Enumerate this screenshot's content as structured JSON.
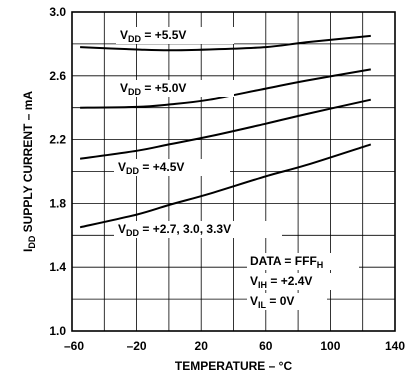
{
  "chart_data": {
    "type": "line",
    "xlabel": "TEMPERATURE – °C",
    "ylabel": {
      "main": "I",
      "sub": "DD",
      "rest": " SUPPLY CURRENT – mA"
    },
    "xlim": [
      -60,
      140
    ],
    "ylim": [
      1.0,
      3.0
    ],
    "x_ticks": [
      "–60",
      "–20",
      "20",
      "60",
      "100",
      "140"
    ],
    "y_ticks": [
      "1.0",
      "1.4",
      "1.8",
      "2.2",
      "2.6",
      "3.0"
    ],
    "grid": true,
    "series": [
      {
        "name": {
          "main": "V",
          "sub": "DD",
          "rest": " = +5.5V"
        },
        "x": [
          -55,
          -20,
          0,
          25,
          60,
          85,
          125
        ],
        "y": [
          2.78,
          2.765,
          2.76,
          2.765,
          2.78,
          2.81,
          2.85
        ]
      },
      {
        "name": {
          "main": "V",
          "sub": "DD",
          "rest": " = +5.0V"
        },
        "x": [
          -55,
          -20,
          0,
          25,
          60,
          85,
          125
        ],
        "y": [
          2.4,
          2.405,
          2.42,
          2.45,
          2.52,
          2.57,
          2.64
        ]
      },
      {
        "name": {
          "main": "V",
          "sub": "DD",
          "rest": " = +4.5V"
        },
        "x": [
          -55,
          -20,
          0,
          25,
          60,
          85,
          125
        ],
        "y": [
          2.08,
          2.13,
          2.17,
          2.22,
          2.3,
          2.36,
          2.45
        ]
      },
      {
        "name": {
          "main": "V",
          "sub": "DD",
          "rest": " = +2.7, 3.0, 3.3V"
        },
        "x": [
          -55,
          -20,
          0,
          25,
          60,
          85,
          125
        ],
        "y": [
          1.65,
          1.73,
          1.79,
          1.86,
          1.97,
          2.04,
          2.17
        ]
      }
    ],
    "annotations": [
      {
        "main": "DATA = FFF",
        "sub": "H",
        "rest": ""
      },
      {
        "main": "V",
        "sub": "IH",
        "rest": " = +2.4V"
      },
      {
        "main": "V",
        "sub": "IL",
        "rest": " = 0V"
      }
    ]
  }
}
